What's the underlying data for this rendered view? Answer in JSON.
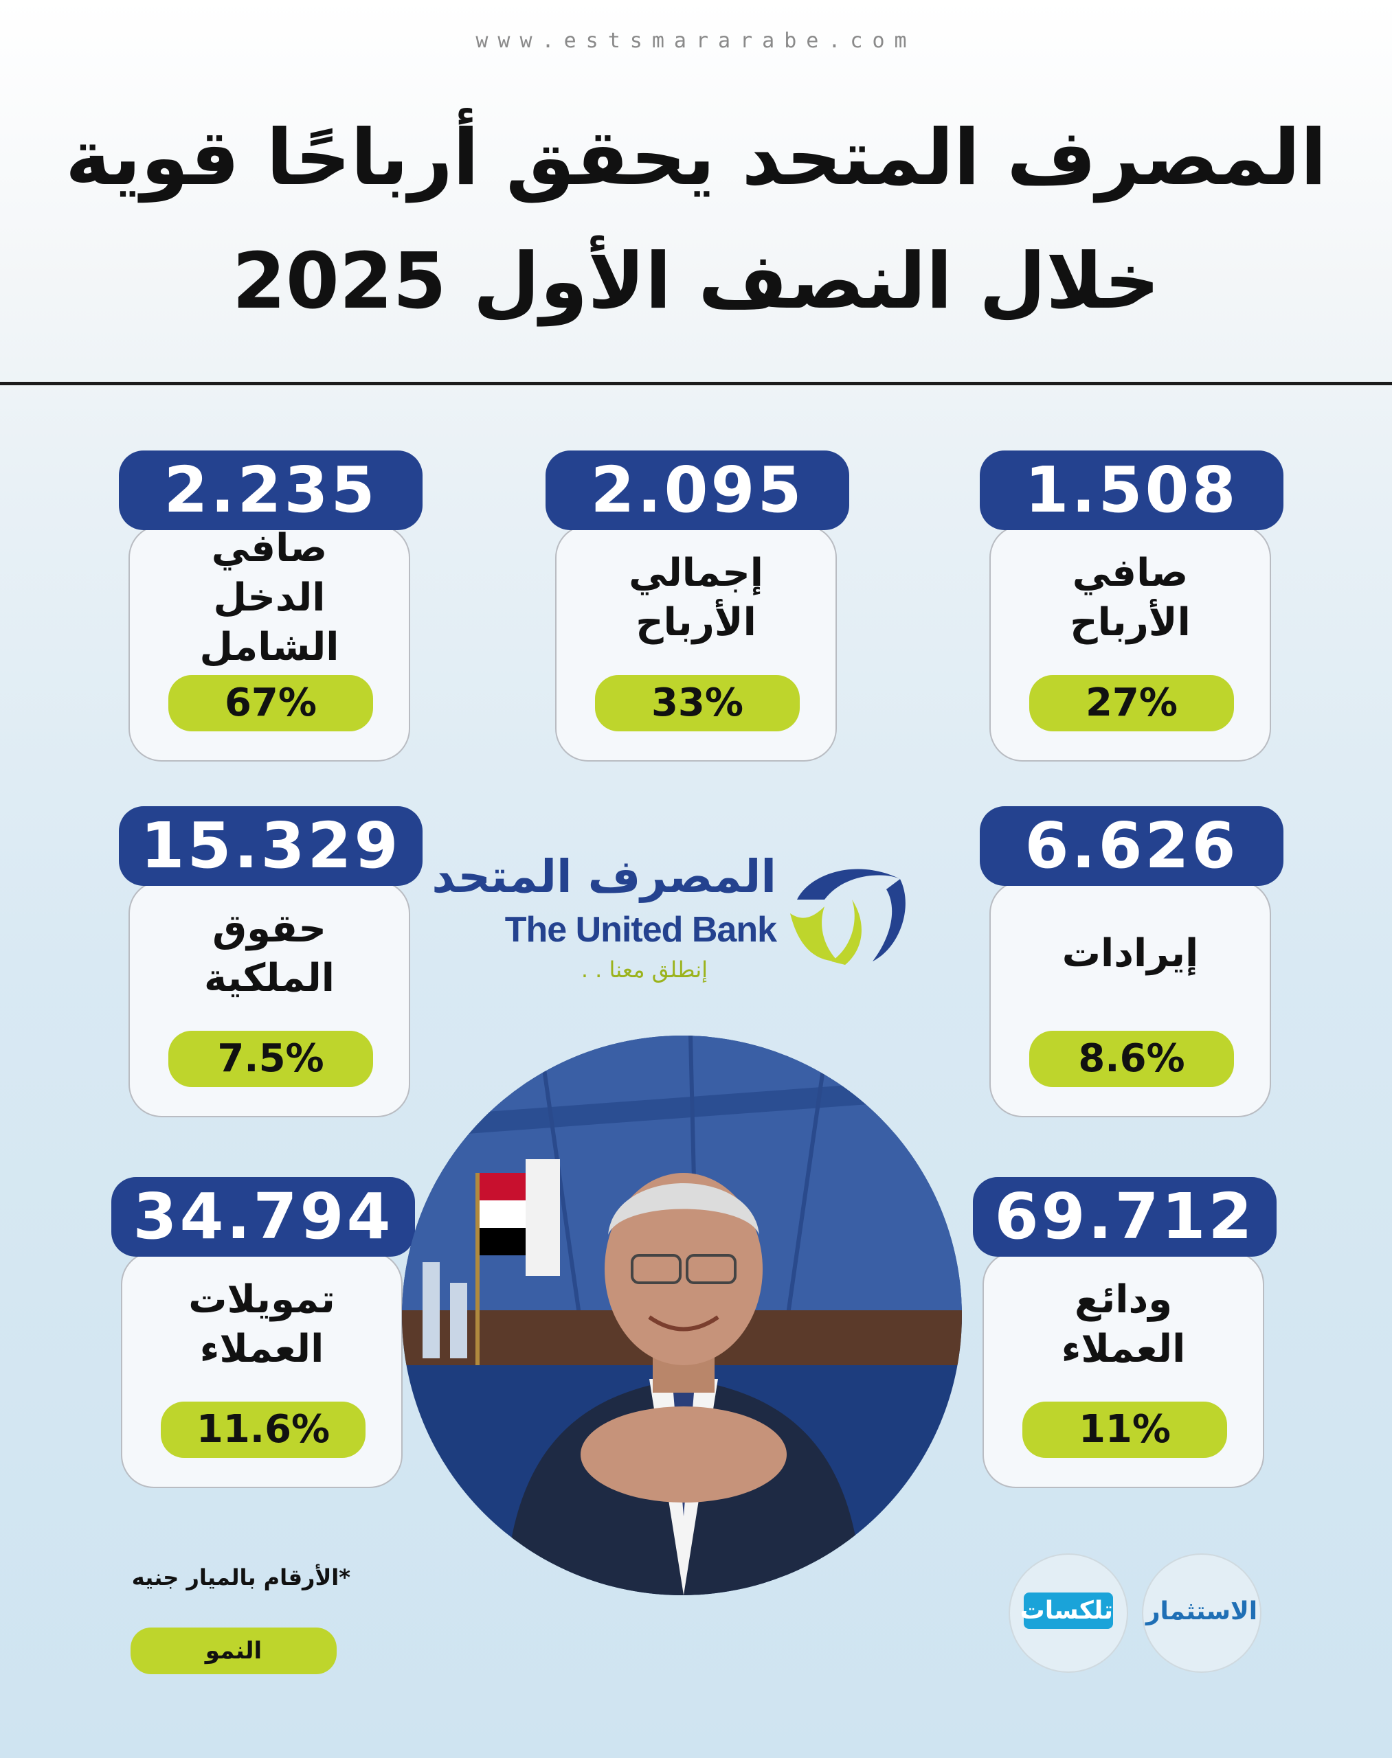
{
  "header": {
    "website": "www.estsmararabe.com",
    "title_line1": "المصرف المتحد يحقق أرباحًا قوية",
    "title_line2": "خلال النصف الأول 2025"
  },
  "metrics": [
    {
      "value": "1.508",
      "label": "صافي الأرباح",
      "growth": "27%"
    },
    {
      "value": "2.095",
      "label": "إجمالي الأرباح",
      "growth": "33%"
    },
    {
      "value": "2.235",
      "label": "صافي الدخل الشامل",
      "growth": "67%"
    },
    {
      "value": "6.626",
      "label": "إيرادات",
      "growth": "8.6%"
    },
    {
      "value": "15.329",
      "label": "حقوق الملكية",
      "growth": "7.5%"
    },
    {
      "value": "69.712",
      "label": "ودائع العملاء",
      "growth": "11%"
    },
    {
      "value": "34.794",
      "label": "تمويلات العملاء",
      "growth": "11.6%"
    }
  ],
  "logo": {
    "name_ar": "المصرف المتحد",
    "name_en": "The United Bank",
    "tagline": "إنطلق معنا . ."
  },
  "footer": {
    "note": "*الأرقام بالميار جنيه",
    "legend": "النمو",
    "badge_right": "الاستثمار",
    "badge_left": "تلكسات"
  },
  "colors": {
    "value_box": "#24428f",
    "growth_pill": "#bed52c"
  }
}
